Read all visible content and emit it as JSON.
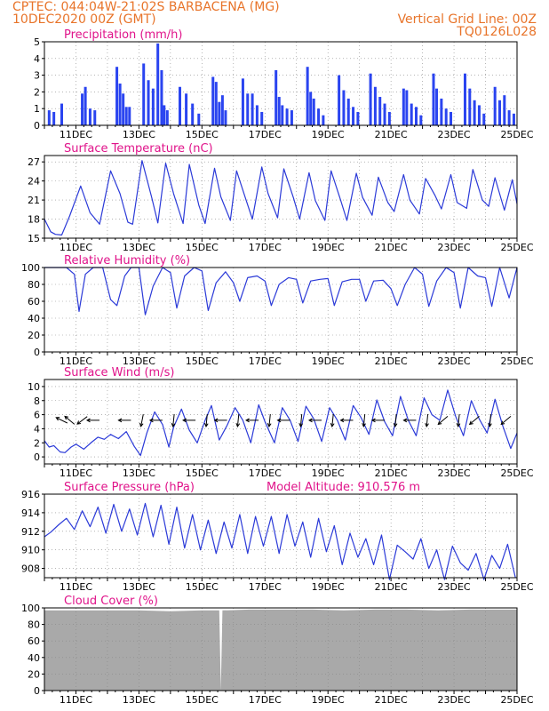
{
  "header": {
    "line1_left": "CPTEC:   044:04W-21:02S  BARBACENA (MG)",
    "line2_left": "10DEC2020 00Z (GMT)",
    "line2_right": "Vertical Grid Line: 00Z",
    "line3_right": "TQ0126L028"
  },
  "colors": {
    "header": "#e8742a",
    "title": "#e0138a",
    "line": "#2b3ad8",
    "bar": "#2a44f0",
    "cloud": "#a9a9a9",
    "arrow": "#000000",
    "grid": "#888888"
  },
  "x_axis": {
    "labels": [
      "11DEC",
      "13DEC",
      "15DEC",
      "17DEC",
      "19DEC",
      "21DEC",
      "23DEC",
      "25DEC"
    ],
    "start_day": 10,
    "end_day": 25
  },
  "chart_data": [
    {
      "type": "bar",
      "title": "Precipitation (mm/h)",
      "ylim": [
        0,
        5
      ],
      "yticks": [
        {
          "v": 0,
          "label": "0"
        },
        {
          "v": 1,
          "label": "1"
        },
        {
          "v": 2,
          "label": "2"
        },
        {
          "v": 3,
          "label": "3"
        },
        {
          "v": 4,
          "label": "4"
        },
        {
          "v": 5,
          "label": "5"
        }
      ],
      "x": [
        10.15,
        10.3,
        10.55,
        11.2,
        11.3,
        11.45,
        11.6,
        12.3,
        12.4,
        12.5,
        12.6,
        12.7,
        13.15,
        13.3,
        13.45,
        13.6,
        13.72,
        13.8,
        13.9,
        14.3,
        14.5,
        14.7,
        14.9,
        15.35,
        15.45,
        15.55,
        15.65,
        15.75,
        16.3,
        16.45,
        16.6,
        16.75,
        16.9,
        17.35,
        17.45,
        17.55,
        17.7,
        17.85,
        18.35,
        18.45,
        18.55,
        18.7,
        18.85,
        19.35,
        19.5,
        19.65,
        19.8,
        19.95,
        20.35,
        20.5,
        20.65,
        20.8,
        20.95,
        21.4,
        21.5,
        21.65,
        21.8,
        21.95,
        22.35,
        22.45,
        22.6,
        22.75,
        22.9,
        23.35,
        23.5,
        23.65,
        23.8,
        23.95,
        24.3,
        24.45,
        24.6,
        24.75,
        24.9
      ],
      "values": [
        0.9,
        0.8,
        1.3,
        1.9,
        2.3,
        1.0,
        0.9,
        3.5,
        2.5,
        1.9,
        1.1,
        1.1,
        3.7,
        2.7,
        2.2,
        4.9,
        3.3,
        1.2,
        0.9,
        2.3,
        1.9,
        1.3,
        0.7,
        2.9,
        2.6,
        1.4,
        1.8,
        0.9,
        2.8,
        1.9,
        1.9,
        1.2,
        0.8,
        3.3,
        1.7,
        1.2,
        1.0,
        0.9,
        3.5,
        2.0,
        1.6,
        1.0,
        0.6,
        3.0,
        2.1,
        1.6,
        1.1,
        0.8,
        3.1,
        2.3,
        1.7,
        1.3,
        0.8,
        2.2,
        2.1,
        1.3,
        1.1,
        0.6,
        3.1,
        2.2,
        1.6,
        1.0,
        0.8,
        3.1,
        2.2,
        1.5,
        1.2,
        0.7,
        2.3,
        1.5,
        1.8,
        0.9,
        0.7
      ]
    },
    {
      "type": "line",
      "title": "Surface Temperature (nC)",
      "ylim": [
        15,
        28
      ],
      "yticks": [
        {
          "v": 15,
          "label": "15"
        },
        {
          "v": 18,
          "label": "18"
        },
        {
          "v": 21,
          "label": "21"
        },
        {
          "v": 24,
          "label": "24"
        },
        {
          "v": 27,
          "label": "27"
        }
      ],
      "x": [
        10.0,
        10.2,
        10.35,
        10.55,
        10.8,
        11.15,
        11.45,
        11.75,
        12.1,
        12.4,
        12.65,
        12.8,
        13.1,
        13.4,
        13.6,
        13.85,
        14.1,
        14.4,
        14.6,
        14.9,
        15.1,
        15.4,
        15.6,
        15.9,
        16.1,
        16.4,
        16.6,
        16.9,
        17.1,
        17.4,
        17.6,
        17.9,
        18.1,
        18.4,
        18.6,
        18.9,
        19.1,
        19.4,
        19.6,
        19.9,
        20.1,
        20.4,
        20.6,
        20.9,
        21.1,
        21.4,
        21.6,
        21.9,
        22.1,
        22.4,
        22.6,
        22.9,
        23.1,
        23.4,
        23.6,
        23.9,
        24.1,
        24.3,
        24.6,
        24.85,
        25.0
      ],
      "values": [
        18.0,
        16.0,
        15.6,
        15.5,
        18.5,
        23.2,
        19.0,
        17.2,
        25.6,
        22.0,
        17.5,
        17.2,
        27.2,
        21.5,
        17.4,
        26.8,
        22.0,
        17.3,
        26.6,
        20.2,
        17.3,
        26.0,
        21.5,
        17.8,
        25.6,
        21.0,
        18.0,
        26.2,
        22.0,
        18.2,
        25.9,
        21.4,
        18.0,
        25.3,
        20.9,
        17.8,
        25.6,
        21.0,
        17.8,
        25.2,
        21.4,
        18.6,
        24.6,
        20.6,
        19.2,
        25.0,
        21.0,
        18.8,
        24.4,
        21.7,
        19.6,
        25.0,
        20.6,
        19.7,
        25.8,
        21.0,
        20.0,
        24.5,
        19.4,
        24.2,
        20.4
      ]
    },
    {
      "type": "line",
      "title": "Relative Humidity (%)",
      "ylim": [
        0,
        100
      ],
      "yticks": [
        {
          "v": 0,
          "label": "0"
        },
        {
          "v": 20,
          "label": "20"
        },
        {
          "v": 40,
          "label": "40"
        },
        {
          "v": 60,
          "label": "60"
        },
        {
          "v": 80,
          "label": "80"
        },
        {
          "v": 100,
          "label": "100"
        }
      ],
      "x": [
        10.0,
        10.4,
        10.7,
        10.95,
        11.1,
        11.3,
        11.55,
        11.85,
        12.1,
        12.3,
        12.55,
        12.75,
        13.0,
        13.2,
        13.45,
        13.75,
        14.0,
        14.2,
        14.45,
        14.75,
        15.0,
        15.2,
        15.45,
        15.75,
        16.0,
        16.2,
        16.45,
        16.75,
        17.0,
        17.2,
        17.45,
        17.75,
        18.0,
        18.2,
        18.45,
        18.75,
        19.0,
        19.2,
        19.45,
        19.75,
        20.0,
        20.2,
        20.45,
        20.75,
        21.0,
        21.2,
        21.45,
        21.75,
        22.0,
        22.2,
        22.45,
        22.75,
        23.0,
        23.2,
        23.45,
        23.75,
        24.0,
        24.2,
        24.45,
        24.75,
        25.0
      ],
      "values": [
        100,
        100,
        100,
        92,
        48,
        92,
        100,
        100,
        62,
        55,
        90,
        100,
        100,
        44,
        78,
        100,
        94,
        52,
        90,
        100,
        96,
        49,
        82,
        95,
        82,
        60,
        88,
        90,
        84,
        55,
        80,
        88,
        86,
        58,
        84,
        86,
        87,
        55,
        83,
        86,
        86,
        60,
        84,
        85,
        75,
        55,
        80,
        100,
        92,
        54,
        84,
        100,
        94,
        52,
        100,
        90,
        88,
        54,
        100,
        64,
        100
      ]
    },
    {
      "type": "line",
      "title": "Surface Wind (m/s)",
      "ylim": [
        -1,
        11
      ],
      "yticks": [
        {
          "v": 0,
          "label": "0"
        },
        {
          "v": 2,
          "label": "2"
        },
        {
          "v": 4,
          "label": "4"
        },
        {
          "v": 6,
          "label": "6"
        },
        {
          "v": 8,
          "label": "8"
        },
        {
          "v": 10,
          "label": "10"
        }
      ],
      "x": [
        10.0,
        10.15,
        10.3,
        10.5,
        10.65,
        10.85,
        11.0,
        11.25,
        11.5,
        11.7,
        11.9,
        12.1,
        12.35,
        12.6,
        12.85,
        13.05,
        13.25,
        13.5,
        13.75,
        13.95,
        14.1,
        14.35,
        14.6,
        14.85,
        15.1,
        15.3,
        15.55,
        15.8,
        16.05,
        16.3,
        16.55,
        16.8,
        17.0,
        17.3,
        17.55,
        17.8,
        18.05,
        18.3,
        18.55,
        18.8,
        19.05,
        19.3,
        19.55,
        19.8,
        20.05,
        20.3,
        20.55,
        20.8,
        21.05,
        21.3,
        21.55,
        21.8,
        22.05,
        22.3,
        22.55,
        22.8,
        23.05,
        23.3,
        23.55,
        23.8,
        24.05,
        24.3,
        24.55,
        24.8,
        25.0
      ],
      "values": [
        2.3,
        1.4,
        1.6,
        0.7,
        0.6,
        1.4,
        1.8,
        1.1,
        2.1,
        2.8,
        2.5,
        3.2,
        2.6,
        3.6,
        1.5,
        0.2,
        3.4,
        6.4,
        4.6,
        1.4,
        4.2,
        6.8,
        3.8,
        2.0,
        5.2,
        7.3,
        2.4,
        4.5,
        7.0,
        5.2,
        2.0,
        7.4,
        5.0,
        2.0,
        7.0,
        5.2,
        2.2,
        7.2,
        5.4,
        2.2,
        7.0,
        5.2,
        2.4,
        7.3,
        5.6,
        3.2,
        8.1,
        5.0,
        3.0,
        8.6,
        5.2,
        3.0,
        8.4,
        6.0,
        5.2,
        9.5,
        5.8,
        3.0,
        8.0,
        5.4,
        3.4,
        8.2,
        4.4,
        1.2,
        3.4
      ],
      "arrows": {
        "x": [
          10.55,
          10.8,
          11.2,
          11.55,
          12.55,
          13.1,
          13.55,
          14.1,
          14.6,
          15.15,
          15.6,
          16.15,
          16.6,
          17.15,
          17.6,
          18.15,
          18.6,
          19.15,
          19.6,
          20.15,
          20.6,
          21.15,
          21.6,
          22.15,
          22.65,
          23.15,
          23.65,
          24.15,
          24.65
        ],
        "u": [
          -0.6,
          -0.6,
          -0.4,
          -1.0,
          -1.0,
          -0.2,
          -1.0,
          -0.1,
          -1.0,
          -0.1,
          -1.0,
          -0.1,
          -1.0,
          -0.1,
          -1.0,
          -0.1,
          -1.0,
          -0.1,
          -1.0,
          -0.1,
          -1.0,
          -0.1,
          -1.0,
          -0.1,
          -0.6,
          -0.1,
          -0.6,
          -0.1,
          -0.6
        ],
        "v": [
          0.3,
          0.5,
          -0.3,
          0.0,
          0.0,
          -1.0,
          0.0,
          -1.0,
          0.0,
          -1.0,
          0.0,
          -1.0,
          0.0,
          -1.0,
          0.0,
          -1.0,
          0.0,
          -1.0,
          0.0,
          -1.0,
          0.0,
          -1.0,
          0.0,
          -1.0,
          -0.5,
          -1.0,
          -0.5,
          -1.0,
          -0.5
        ]
      }
    },
    {
      "type": "line",
      "title": "Surface Pressure (hPa)",
      "annotation": "Model Altitude: 910.576 m",
      "ylim": [
        907,
        916
      ],
      "yticks": [
        {
          "v": 908,
          "label": "908"
        },
        {
          "v": 910,
          "label": "910"
        },
        {
          "v": 912,
          "label": "912"
        },
        {
          "v": 914,
          "label": "914"
        },
        {
          "v": 916,
          "label": "916"
        }
      ],
      "x": [
        10.0,
        10.2,
        10.45,
        10.7,
        10.95,
        11.2,
        11.45,
        11.7,
        11.95,
        12.2,
        12.45,
        12.7,
        12.95,
        13.2,
        13.45,
        13.7,
        13.95,
        14.2,
        14.45,
        14.7,
        14.95,
        15.2,
        15.45,
        15.7,
        15.95,
        16.2,
        16.45,
        16.7,
        16.95,
        17.2,
        17.45,
        17.7,
        17.95,
        18.2,
        18.45,
        18.7,
        18.95,
        19.2,
        19.45,
        19.7,
        19.95,
        20.2,
        20.45,
        20.7,
        20.95,
        21.2,
        21.45,
        21.7,
        21.95,
        22.2,
        22.45,
        22.7,
        22.95,
        23.2,
        23.45,
        23.7,
        23.95,
        24.2,
        24.45,
        24.7,
        24.95
      ],
      "values": [
        911.4,
        911.9,
        912.7,
        913.4,
        912.2,
        914.2,
        912.5,
        914.6,
        911.8,
        914.9,
        912.0,
        914.4,
        911.6,
        915.0,
        911.4,
        914.8,
        910.6,
        914.6,
        910.2,
        913.8,
        910.0,
        913.2,
        909.6,
        913.0,
        910.2,
        913.8,
        909.6,
        913.6,
        910.4,
        913.6,
        909.6,
        913.8,
        910.4,
        913.0,
        909.2,
        913.4,
        909.8,
        912.6,
        908.4,
        911.8,
        909.2,
        911.2,
        908.4,
        911.6,
        906.8,
        910.5,
        909.8,
        909.0,
        911.2,
        908.0,
        910.0,
        906.8,
        910.4,
        908.6,
        907.8,
        909.6,
        906.8,
        909.4,
        908.0,
        910.6,
        907.0
      ]
    },
    {
      "type": "area",
      "title": "Cloud Cover (%)",
      "ylim": [
        0,
        100
      ],
      "yticks": [
        {
          "v": 0,
          "label": "0"
        },
        {
          "v": 20,
          "label": "20"
        },
        {
          "v": 40,
          "label": "40"
        },
        {
          "v": 60,
          "label": "60"
        },
        {
          "v": 80,
          "label": "80"
        },
        {
          "v": 100,
          "label": "100"
        }
      ],
      "x": [
        10.0,
        11.0,
        12.0,
        13.0,
        14.0,
        15.0,
        15.55,
        15.6,
        15.65,
        16.5,
        17.5,
        18.5,
        19.5,
        20.5,
        21.5,
        22.5,
        23.5,
        24.5,
        25.0
      ],
      "values": [
        97,
        97,
        97,
        97,
        96,
        97,
        97,
        0,
        97,
        98,
        98,
        98,
        97,
        98,
        98,
        97,
        98,
        98,
        98
      ]
    }
  ]
}
